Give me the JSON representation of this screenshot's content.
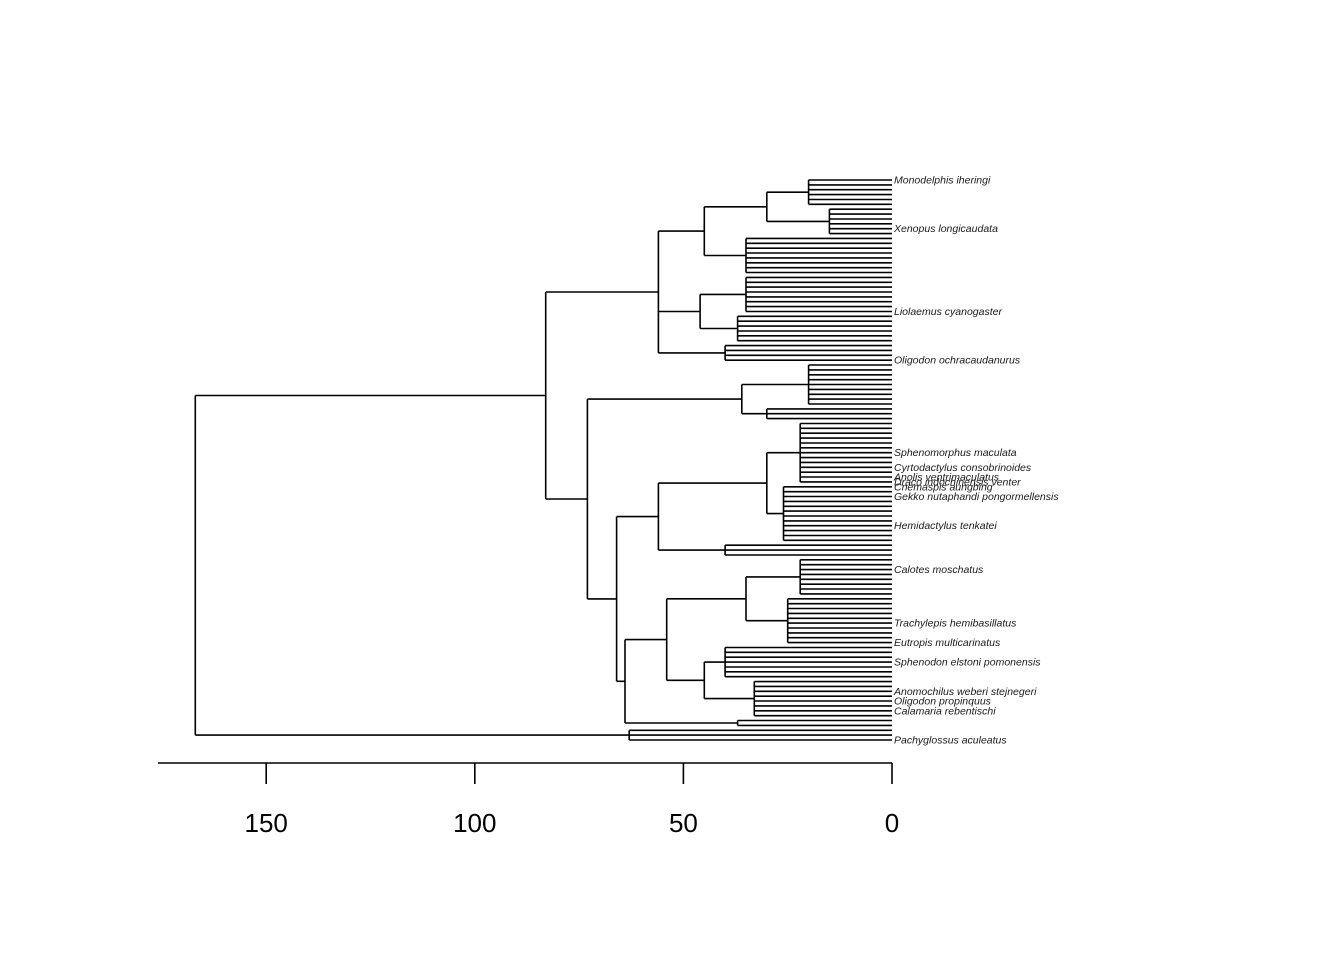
{
  "chart_data": {
    "type": "phylogenetic-tree",
    "axis": {
      "direction": "reversed",
      "range": [
        175,
        0
      ],
      "ticks": [
        150,
        100,
        50,
        0
      ],
      "tick_labels": [
        "150",
        "100",
        "50",
        "0"
      ]
    },
    "tree": {
      "age": 167,
      "children": [
        {
          "age": 83,
          "children": [
            {
              "age": 56,
              "children": [
                {
                  "age": 45,
                  "children": [
                    {
                      "age": 30,
                      "children": [
                        {
                          "age": 20,
                          "children": [
                            {
                              "label": "Monodelphis iheringi"
                            },
                            {
                              "label": ""
                            },
                            {
                              "label": ""
                            },
                            {
                              "label": ""
                            },
                            {
                              "label": ""
                            },
                            {
                              "label": ""
                            }
                          ]
                        },
                        {
                          "age": 15,
                          "children": [
                            {
                              "label": ""
                            },
                            {
                              "label": ""
                            },
                            {
                              "label": ""
                            },
                            {
                              "label": ""
                            },
                            {
                              "label": "Xenopus longicaudata"
                            },
                            {
                              "label": ""
                            }
                          ]
                        }
                      ]
                    },
                    {
                      "age": 35,
                      "children": [
                        {
                          "label": ""
                        },
                        {
                          "label": ""
                        },
                        {
                          "label": ""
                        },
                        {
                          "label": ""
                        },
                        {
                          "label": ""
                        },
                        {
                          "label": ""
                        },
                        {
                          "label": ""
                        },
                        {
                          "label": ""
                        }
                      ]
                    }
                  ]
                },
                {
                  "age": 46,
                  "children": [
                    {
                      "age": 35,
                      "children": [
                        {
                          "label": ""
                        },
                        {
                          "label": ""
                        },
                        {
                          "label": ""
                        },
                        {
                          "label": ""
                        },
                        {
                          "label": ""
                        },
                        {
                          "label": ""
                        },
                        {
                          "label": ""
                        },
                        {
                          "label": "Liolaemus cyanogaster"
                        }
                      ]
                    },
                    {
                      "age": 37,
                      "children": [
                        {
                          "label": ""
                        },
                        {
                          "label": ""
                        },
                        {
                          "label": ""
                        },
                        {
                          "label": ""
                        },
                        {
                          "label": ""
                        },
                        {
                          "label": ""
                        }
                      ]
                    }
                  ]
                },
                {
                  "age": 40,
                  "children": [
                    {
                      "label": ""
                    },
                    {
                      "label": ""
                    },
                    {
                      "label": ""
                    },
                    {
                      "label": "Oligodon ochracaudanurus"
                    }
                  ]
                }
              ]
            },
            {
              "age": 73,
              "children": [
                {
                  "age": 36,
                  "children": [
                    {
                      "age": 20,
                      "children": [
                        {
                          "label": ""
                        },
                        {
                          "label": ""
                        },
                        {
                          "label": ""
                        },
                        {
                          "label": ""
                        },
                        {
                          "label": ""
                        },
                        {
                          "label": ""
                        },
                        {
                          "label": ""
                        },
                        {
                          "label": ""
                        },
                        {
                          "label": ""
                        }
                      ]
                    },
                    {
                      "age": 30,
                      "children": [
                        {
                          "label": ""
                        },
                        {
                          "label": ""
                        },
                        {
                          "label": ""
                        }
                      ]
                    }
                  ]
                },
                {
                  "age": 66,
                  "children": [
                    {
                      "age": 56,
                      "children": [
                        {
                          "age": 30,
                          "children": [
                            {
                              "age": 22,
                              "children": [
                                {
                                  "label": ""
                                },
                                {
                                  "label": ""
                                },
                                {
                                  "label": ""
                                },
                                {
                                  "label": ""
                                },
                                {
                                  "label": ""
                                },
                                {
                                  "label": ""
                                },
                                {
                                  "label": "Sphenomorphus maculata"
                                },
                                {
                                  "label": ""
                                },
                                {
                                  "label": ""
                                },
                                {
                                  "label": "Cyrtodactylus consobrinoides"
                                },
                                {
                                  "label": ""
                                },
                                {
                                  "label": "Anolis ventrimaculatus"
                                },
                                {
                                  "label": "Draco indochinensis venter"
                                }
                              ]
                            },
                            {
                              "age": 26,
                              "children": [
                                {
                                  "label": "Cnemaspis aungbing"
                                },
                                {
                                  "label": ""
                                },
                                {
                                  "label": "Gekko nutaphandi pongormellensis"
                                },
                                {
                                  "label": ""
                                },
                                {
                                  "label": ""
                                },
                                {
                                  "label": ""
                                },
                                {
                                  "label": ""
                                },
                                {
                                  "label": ""
                                },
                                {
                                  "label": "Hemidactylus tenkatei"
                                },
                                {
                                  "label": ""
                                },
                                {
                                  "label": ""
                                },
                                {
                                  "label": ""
                                }
                              ]
                            }
                          ]
                        },
                        {
                          "age": 40,
                          "children": [
                            {
                              "label": ""
                            },
                            {
                              "label": ""
                            },
                            {
                              "label": ""
                            }
                          ]
                        }
                      ]
                    },
                    {
                      "age": 64,
                      "children": [
                        {
                          "age": 54,
                          "children": [
                            {
                              "age": 35,
                              "children": [
                                {
                                  "age": 22,
                                  "children": [
                                    {
                                      "label": ""
                                    },
                                    {
                                      "label": ""
                                    },
                                    {
                                      "label": "Calotes moschatus"
                                    },
                                    {
                                      "label": ""
                                    },
                                    {
                                      "label": ""
                                    },
                                    {
                                      "label": ""
                                    },
                                    {
                                      "label": ""
                                    },
                                    {
                                      "label": ""
                                    }
                                  ]
                                },
                                {
                                  "age": 25,
                                  "children": [
                                    {
                                      "label": ""
                                    },
                                    {
                                      "label": ""
                                    },
                                    {
                                      "label": ""
                                    },
                                    {
                                      "label": ""
                                    },
                                    {
                                      "label": ""
                                    },
                                    {
                                      "label": "Trachylepis hemibasillatus"
                                    },
                                    {
                                      "label": ""
                                    },
                                    {
                                      "label": ""
                                    },
                                    {
                                      "label": ""
                                    },
                                    {
                                      "label": "Eutropis multicarinatus"
                                    }
                                  ]
                                }
                              ]
                            },
                            {
                              "age": 45,
                              "children": [
                                {
                                  "age": 40,
                                  "children": [
                                    {
                                      "label": ""
                                    },
                                    {
                                      "label": ""
                                    },
                                    {
                                      "label": ""
                                    },
                                    {
                                      "label": "Sphenodon elstoni pomonensis"
                                    },
                                    {
                                      "label": ""
                                    },
                                    {
                                      "label": ""
                                    },
                                    {
                                      "label": ""
                                    }
                                  ]
                                },
                                {
                                  "age": 33,
                                  "children": [
                                    {
                                      "label": ""
                                    },
                                    {
                                      "label": ""
                                    },
                                    {
                                      "label": "Anomochilus weberi stejnegeri"
                                    },
                                    {
                                      "label": ""
                                    },
                                    {
                                      "label": "Oligodon propinquus"
                                    },
                                    {
                                      "label": ""
                                    },
                                    {
                                      "label": "Calamaria rebentischi"
                                    },
                                    {
                                      "label": ""
                                    }
                                  ]
                                }
                              ]
                            }
                          ]
                        },
                        {
                          "age": 37,
                          "children": [
                            {
                              "label": ""
                            },
                            {
                              "label": ""
                            }
                          ]
                        }
                      ]
                    }
                  ]
                }
              ]
            }
          ]
        },
        {
          "age": 63,
          "children": [
            {
              "label": ""
            },
            {
              "label": ""
            },
            {
              "label": "Pachyglossus aculeatus"
            }
          ]
        }
      ]
    }
  }
}
